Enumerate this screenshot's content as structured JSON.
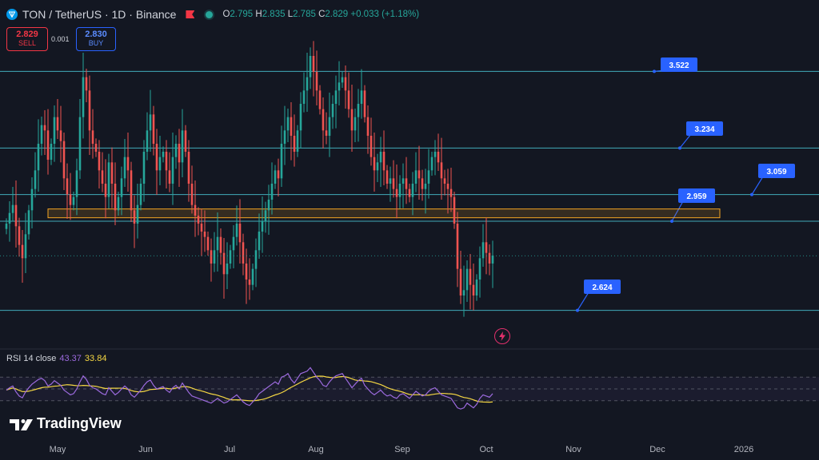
{
  "header": {
    "symbol": "TON / TetherUS · 1D · Binance",
    "ohlc": {
      "o_label": "O",
      "o": "2.795",
      "h_label": "H",
      "h": "2.835",
      "l_label": "L",
      "l": "2.785",
      "c_label": "C",
      "c": "2.829",
      "change": "+0.033 (+1.18%)"
    }
  },
  "trade": {
    "sell_price": "2.829",
    "sell_label": "SELL",
    "spread": "0.001",
    "buy_price": "2.830",
    "buy_label": "BUY"
  },
  "rsi": {
    "label": "RSI 14 close",
    "value": "43.37",
    "ma_value": "33.84"
  },
  "branding": {
    "logo_text": "TradingView"
  },
  "colors": {
    "background": "#131722",
    "up": "#26a69a",
    "down": "#ef5350",
    "level_line": "#4dd0e1",
    "zone": "#f5a623",
    "callout": "#2962ff",
    "rsi": "#9c6ade",
    "rsi_ma": "#f5d743"
  },
  "chart_data": {
    "type": "candlestick",
    "ylim": [
      2.5,
      3.7
    ],
    "x_ticks": [
      "May",
      "Jun",
      "Jul",
      "Aug",
      "Sep",
      "Oct",
      "Nov",
      "Dec",
      "2026"
    ],
    "levels": [
      {
        "label": "3.522",
        "value": 3.522
      },
      {
        "label": "3.234",
        "value": 3.234
      },
      {
        "label": "3.059",
        "value": 3.059
      },
      {
        "label": "2.959",
        "value": 2.959
      },
      {
        "label": "2.624",
        "value": 2.624
      }
    ],
    "zone": {
      "low": 2.972,
      "high": 3.005
    },
    "last_price": 2.829,
    "candles_close": [
      2.95,
      2.99,
      3.02,
      2.94,
      2.87,
      2.82,
      2.91,
      3.0,
      3.08,
      3.15,
      3.25,
      3.32,
      3.3,
      3.19,
      3.25,
      3.35,
      3.3,
      3.26,
      3.12,
      3.06,
      3.02,
      3.05,
      3.15,
      3.35,
      3.5,
      3.45,
      3.3,
      3.25,
      3.22,
      3.15,
      3.1,
      3.05,
      3.18,
      3.1,
      3.0,
      3.05,
      3.12,
      3.2,
      3.15,
      3.0,
      2.95,
      3.02,
      3.1,
      3.22,
      3.3,
      3.36,
      3.25,
      3.15,
      3.2,
      3.22,
      3.15,
      3.1,
      3.2,
      3.25,
      3.18,
      3.3,
      3.22,
      3.1,
      3.02,
      2.98,
      2.95,
      2.92,
      2.9,
      2.85,
      2.8,
      2.85,
      2.9,
      2.84,
      2.76,
      2.8,
      2.85,
      2.9,
      2.95,
      2.88,
      2.8,
      2.74,
      2.72,
      2.78,
      2.85,
      2.92,
      2.96,
      3.0,
      3.04,
      3.1,
      3.15,
      3.12,
      3.25,
      3.3,
      3.35,
      3.28,
      3.22,
      3.3,
      3.4,
      3.45,
      3.5,
      3.58,
      3.52,
      3.45,
      3.38,
      3.3,
      3.28,
      3.35,
      3.4,
      3.45,
      3.48,
      3.5,
      3.45,
      3.38,
      3.3,
      3.35,
      3.4,
      3.45,
      3.35,
      3.28,
      3.2,
      3.15,
      3.18,
      3.22,
      3.15,
      3.1,
      3.12,
      3.08,
      3.05,
      3.1,
      3.12,
      3.08,
      3.05,
      3.1,
      3.15,
      3.12,
      3.08,
      3.1,
      3.15,
      3.2,
      3.22,
      3.18,
      3.12,
      3.1,
      3.08,
      3.05,
      2.95,
      2.78,
      2.68,
      2.7,
      2.78,
      2.72,
      2.68,
      2.74,
      2.82,
      2.88,
      2.84,
      2.8,
      2.83
    ],
    "rsi_values": [
      48,
      52,
      55,
      45,
      38,
      35,
      45,
      52,
      58,
      62,
      66,
      68,
      64,
      55,
      58,
      64,
      60,
      56,
      48,
      44,
      40,
      42,
      50,
      62,
      72,
      66,
      56,
      52,
      50,
      46,
      42,
      40,
      52,
      46,
      40,
      44,
      50,
      55,
      50,
      40,
      36,
      42,
      48,
      56,
      62,
      65,
      56,
      50,
      52,
      54,
      48,
      44,
      52,
      56,
      50,
      60,
      52,
      44,
      38,
      36,
      34,
      32,
      30,
      28,
      26,
      30,
      34,
      30,
      26,
      28,
      32,
      36,
      40,
      34,
      28,
      24,
      22,
      28,
      34,
      42,
      46,
      50,
      54,
      58,
      62,
      58,
      70,
      72,
      76,
      66,
      60,
      68,
      76,
      78,
      80,
      86,
      78,
      70,
      64,
      56,
      54,
      62,
      68,
      72,
      74,
      76,
      68,
      60,
      52,
      58,
      64,
      68,
      56,
      50,
      44,
      40,
      44,
      48,
      42,
      38,
      40,
      36,
      34,
      40,
      42,
      38,
      34,
      40,
      46,
      42,
      38,
      40,
      46,
      50,
      52,
      46,
      40,
      38,
      36,
      34,
      26,
      18,
      16,
      18,
      26,
      22,
      18,
      24,
      34,
      40,
      38,
      36,
      42
    ]
  }
}
